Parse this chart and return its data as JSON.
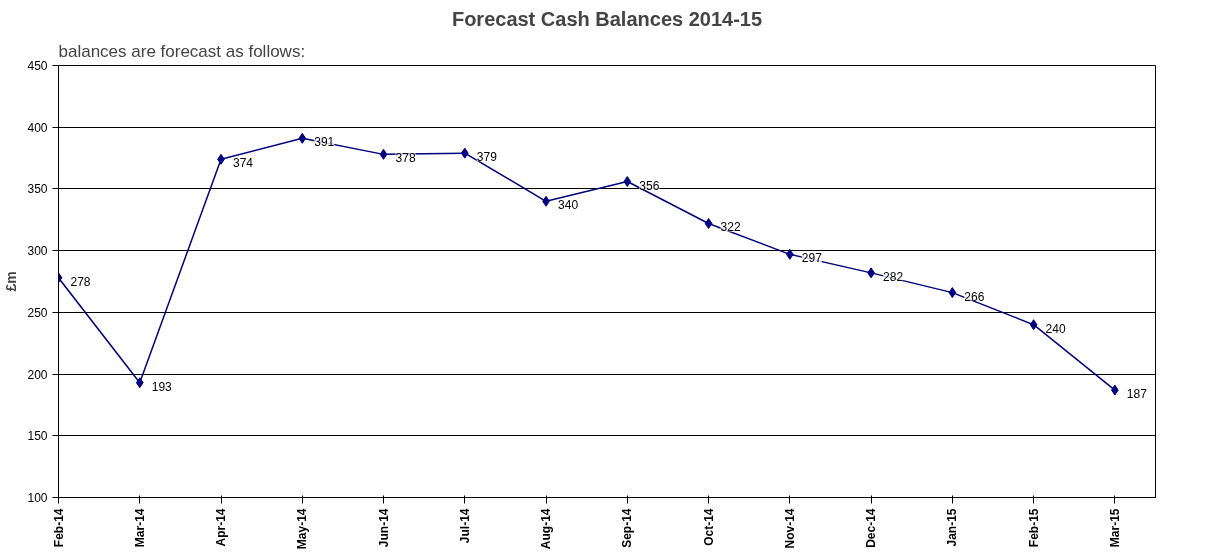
{
  "chart_data": {
    "type": "line",
    "title": "Forecast Cash Balances 2014-15",
    "ylabel": "£m",
    "annotations": [
      "balances are forecast as follows:"
    ],
    "categories": [
      "Feb-14",
      "Mar-14",
      "Apr-14",
      "May-14",
      "Jun-14",
      "Jul-14",
      "Aug-14",
      "Sep-14",
      "Oct-14",
      "Nov-14",
      "Dec-14",
      "Jan-15",
      "Feb-15",
      "Mar-15"
    ],
    "series": [
      {
        "color": "#000080",
        "values": [
          278,
          193,
          374,
          391,
          378,
          379,
          340,
          356,
          322,
          297,
          282,
          266,
          240,
          187
        ]
      }
    ],
    "ylim": [
      100,
      450
    ],
    "yticks": [
      100,
      150,
      200,
      250,
      300,
      350,
      400,
      450
    ],
    "grid": "y",
    "marker": "diamond",
    "line_style": "solid",
    "data_labels": true
  }
}
